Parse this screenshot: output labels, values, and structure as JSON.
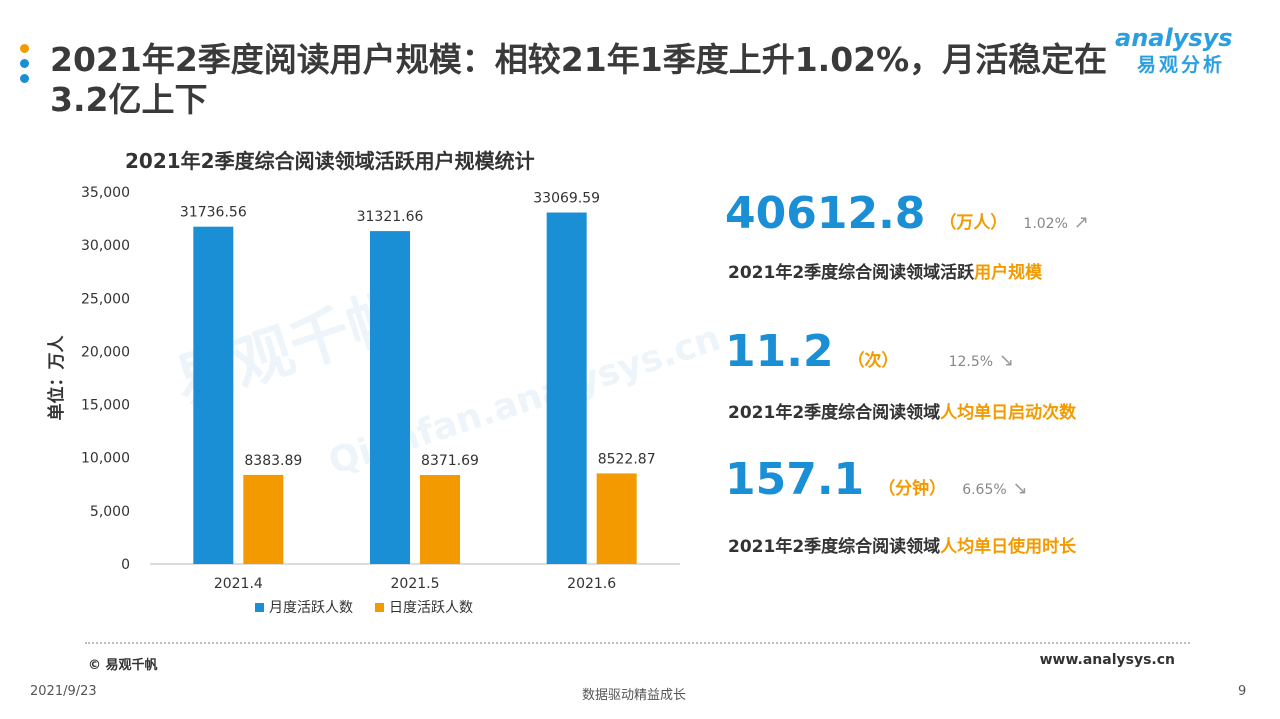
{
  "title": "2021年2季度阅读用户规模：相较21年1季度上升1.02%，月活稳定在3.2亿上下",
  "logo": {
    "en": "analysys",
    "cn": "易观分析"
  },
  "watermark": {
    "cn": "易观千帆",
    "en": "Qianfan.analysys.cn"
  },
  "colors": {
    "monthly": "#1a8fd6",
    "daily": "#f39a00",
    "accent": "#1a8fd6",
    "highlight": "#f39a00"
  },
  "chart_data": {
    "type": "bar",
    "title": "2021年2季度综合阅读领域活跃用户规模统计",
    "ylabel": "单位：万人",
    "categories": [
      "2021.4",
      "2021.5",
      "2021.6"
    ],
    "series": [
      {
        "name": "月度活跃人数",
        "values": [
          31736.56,
          31321.66,
          33069.59
        ]
      },
      {
        "name": "日度活跃人数",
        "values": [
          8383.89,
          8371.69,
          8522.87
        ]
      }
    ],
    "value_labels": [
      [
        "31736.56",
        "31321.66",
        "33069.59"
      ],
      [
        "8383.89",
        "8371.69",
        "8522.87"
      ]
    ],
    "ylim": [
      0,
      35000
    ],
    "yticks": [
      0,
      5000,
      10000,
      15000,
      20000,
      25000,
      30000,
      35000
    ],
    "ytick_labels": [
      "0",
      "5,000",
      "10,000",
      "15,000",
      "20,000",
      "25,000",
      "30,000",
      "35,000"
    ],
    "legend_position": "bottom"
  },
  "stats": [
    {
      "value": "40612.8",
      "unit": "（万人）",
      "change": "1.02%",
      "trend": "up",
      "desc_prefix": "2021年2季度综合阅读领域活跃",
      "desc_highlight": "用户规模"
    },
    {
      "value": "11.2",
      "unit": "（次）",
      "change": "12.5%",
      "trend": "down",
      "desc_prefix": "2021年2季度综合阅读领域",
      "desc_highlight": "人均单日启动次数"
    },
    {
      "value": "157.1",
      "unit": "（分钟）",
      "change": "6.65%",
      "trend": "down",
      "desc_prefix": "2021年2季度综合阅读领域",
      "desc_highlight": "人均单日使用时长"
    }
  ],
  "footer": {
    "copyright": "© 易观千帆",
    "website": "www.analysys.cn"
  },
  "bottom": {
    "date": "2021/9/23",
    "slogan": "数据驱动精益成长",
    "page": "9"
  }
}
